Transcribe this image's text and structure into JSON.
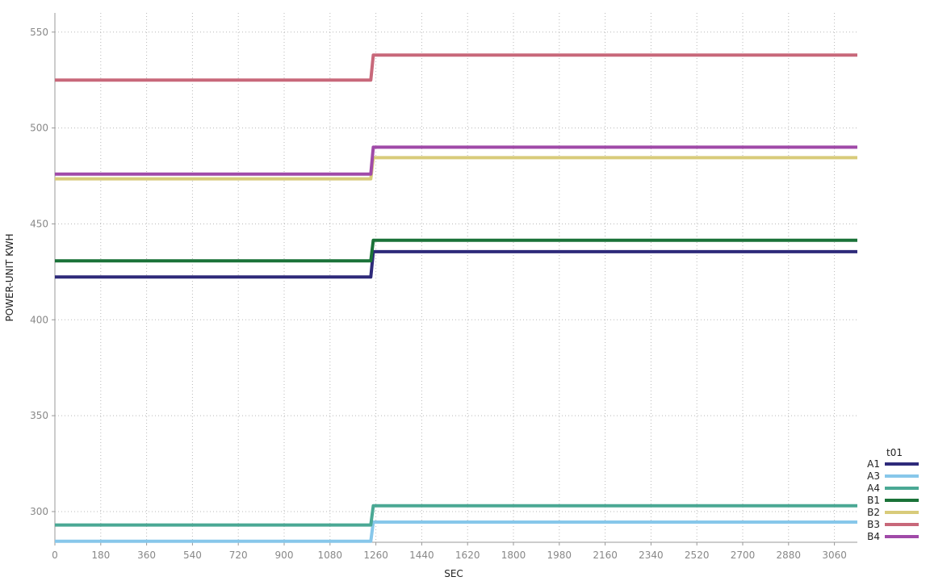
{
  "chart_data": {
    "type": "line",
    "xlabel": "SEC",
    "ylabel": "POWER-UNIT KWH",
    "legend_title": "t01",
    "legend_placement": "bottom-right",
    "grid": true,
    "xlim": [
      0,
      3150
    ],
    "ylim": [
      284,
      560
    ],
    "xticks": [
      0,
      180,
      360,
      540,
      720,
      900,
      1080,
      1260,
      1440,
      1620,
      1800,
      1980,
      2160,
      2340,
      2520,
      2700,
      2880,
      3060
    ],
    "yticks": [
      300,
      350,
      400,
      450,
      500,
      550
    ],
    "x": [
      0,
      1240,
      1250,
      3150
    ],
    "series": [
      {
        "name": "A1",
        "color": "#2e2a7a",
        "values": [
          422.3,
          422.3,
          435.5,
          435.5
        ]
      },
      {
        "name": "A3",
        "color": "#87c7ea",
        "values": [
          284.5,
          284.5,
          294.5,
          294.5
        ]
      },
      {
        "name": "A4",
        "color": "#4aa894",
        "values": [
          293.0,
          293.0,
          303.0,
          303.0
        ]
      },
      {
        "name": "B1",
        "color": "#1a7238",
        "values": [
          430.7,
          430.7,
          441.5,
          441.5
        ]
      },
      {
        "name": "B2",
        "color": "#d8cb7a",
        "values": [
          473.5,
          473.5,
          484.5,
          484.5
        ]
      },
      {
        "name": "B3",
        "color": "#c8687a",
        "values": [
          525.0,
          525.0,
          538.0,
          538.0
        ]
      },
      {
        "name": "B4",
        "color": "#a04aa8",
        "values": [
          476.0,
          476.0,
          490.0,
          490.0
        ]
      }
    ]
  }
}
